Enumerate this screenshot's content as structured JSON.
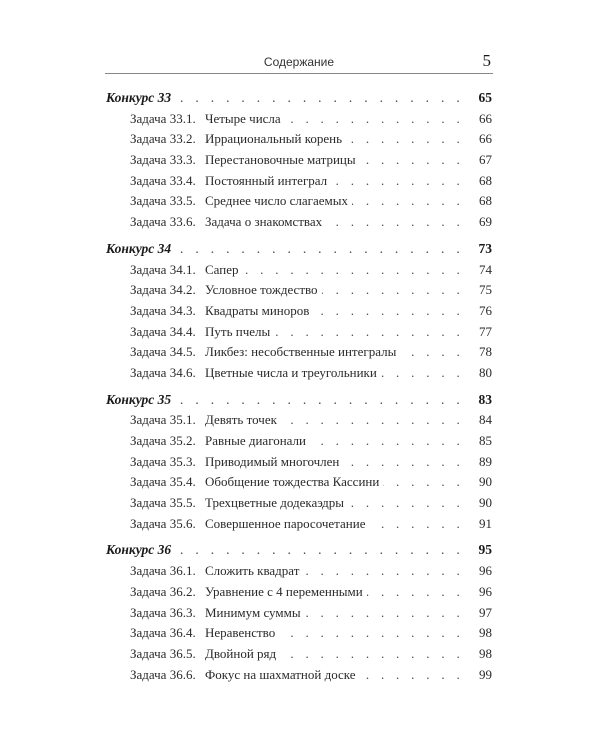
{
  "header": {
    "title": "Содержание",
    "page": "5"
  },
  "sections": [
    {
      "label": "Конкурс 33",
      "page": "65",
      "items": [
        {
          "num": "Задача 33.1.",
          "title": "Четыре числа",
          "page": "66"
        },
        {
          "num": "Задача 33.2.",
          "title": "Иррациональный корень",
          "page": "66"
        },
        {
          "num": "Задача 33.3.",
          "title": "Перестановочные матрицы",
          "page": "67"
        },
        {
          "num": "Задача 33.4.",
          "title": "Постоянный интеграл",
          "page": "68"
        },
        {
          "num": "Задача 33.5.",
          "title": "Среднее число слагаемых",
          "page": "68"
        },
        {
          "num": "Задача 33.6.",
          "title": "Задача о знакомствах",
          "page": "69"
        }
      ]
    },
    {
      "label": "Конкурс 34",
      "page": "73",
      "items": [
        {
          "num": "Задача 34.1.",
          "title": "Сапер",
          "page": "74"
        },
        {
          "num": "Задача 34.2.",
          "title": "Условное тождество",
          "page": "75"
        },
        {
          "num": "Задача 34.3.",
          "title": "Квадраты миноров",
          "page": "76"
        },
        {
          "num": "Задача 34.4.",
          "title": "Путь пчелы",
          "page": "77"
        },
        {
          "num": "Задача 34.5.",
          "title": "Ликбез: несобственные интегралы",
          "page": "78"
        },
        {
          "num": "Задача 34.6.",
          "title": "Цветные числа и треугольники",
          "page": "80"
        }
      ]
    },
    {
      "label": "Конкурс 35",
      "page": "83",
      "items": [
        {
          "num": "Задача 35.1.",
          "title": "Девять точек",
          "page": "84"
        },
        {
          "num": "Задача 35.2.",
          "title": "Равные диагонали",
          "page": "85"
        },
        {
          "num": "Задача 35.3.",
          "title": "Приводимый многочлен",
          "page": "89"
        },
        {
          "num": "Задача 35.4.",
          "title": "Обобщение тождества Кассини",
          "page": "90"
        },
        {
          "num": "Задача 35.5.",
          "title": "Трехцветные додекаэдры",
          "page": "90"
        },
        {
          "num": "Задача 35.6.",
          "title": "Совершенное паросочетание",
          "page": "91"
        }
      ]
    },
    {
      "label": "Конкурс 36",
      "page": "95",
      "items": [
        {
          "num": "Задача 36.1.",
          "title": "Сложить квадрат",
          "page": "96"
        },
        {
          "num": "Задача 36.2.",
          "title": "Уравнение с 4 переменными",
          "page": "96"
        },
        {
          "num": "Задача 36.3.",
          "title": "Минимум суммы",
          "page": "97"
        },
        {
          "num": "Задача 36.4.",
          "title": "Неравенство",
          "page": "98"
        },
        {
          "num": "Задача 36.5.",
          "title": "Двойной ряд",
          "page": "98"
        },
        {
          "num": "Задача 36.6.",
          "title": "Фокус на шахматной доске",
          "page": "99"
        }
      ]
    }
  ]
}
